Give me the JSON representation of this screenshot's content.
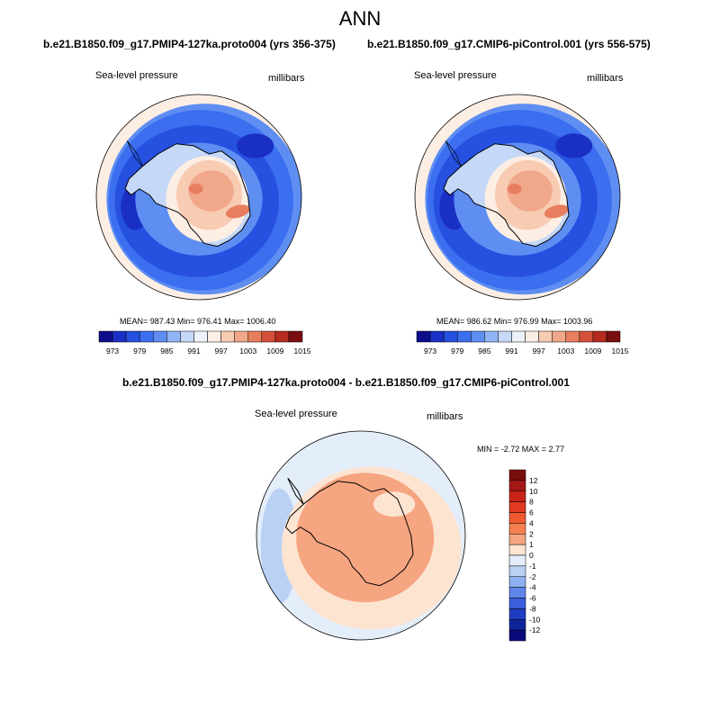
{
  "title": "ANN",
  "panels": [
    {
      "case": "b.e21.B1850.f09_g17.PMIP4-127ka.proto004 (yrs 356-375)",
      "variable": "Sea-level pressure",
      "units": "millibars",
      "stats": "MEAN= 987.43  Min= 976.41  Max= 1006.40",
      "cb_labels": [
        "973",
        "979",
        "985",
        "991",
        "997",
        "1003",
        "1009",
        "1015"
      ],
      "cb_colors": [
        "#0d0d8c",
        "#1a2fc4",
        "#2650e0",
        "#3c6ef0",
        "#5f8ef2",
        "#90b4f5",
        "#c5d8f7",
        "#eef2fa",
        "#fdeee4",
        "#f8cbb3",
        "#f1a88a",
        "#e77e5e",
        "#d4503a",
        "#b52b20",
        "#7a0d0d"
      ],
      "colors": {
        "ocean": "#3c6ef0",
        "inner_ring": "#5f8ef2",
        "trough": "#2650e0",
        "low": "#1a2fc4",
        "high_ring": "#fdeee4",
        "land": "#f8cbb3",
        "land_high": "#f1a88a",
        "peak": "#e77e5e",
        "ice": "#c5d8f7"
      }
    },
    {
      "case": "b.e21.B1850.f09_g17.CMIP6-piControl.001 (yrs 556-575)",
      "variable": "Sea-level pressure",
      "units": "millibars",
      "stats": "MEAN= 986.62  Min= 976.99  Max= 1003.96",
      "cb_labels": [
        "973",
        "979",
        "985",
        "991",
        "997",
        "1003",
        "1009",
        "1015"
      ],
      "cb_colors": [
        "#0d0d8c",
        "#1a2fc4",
        "#2650e0",
        "#3c6ef0",
        "#5f8ef2",
        "#90b4f5",
        "#c5d8f7",
        "#eef2fa",
        "#fdeee4",
        "#f8cbb3",
        "#f1a88a",
        "#e77e5e",
        "#d4503a",
        "#b52b20",
        "#7a0d0d"
      ],
      "colors": {
        "ocean": "#3c6ef0",
        "inner_ring": "#5f8ef2",
        "trough": "#2650e0",
        "low": "#1a2fc4",
        "high_ring": "#fdeee4",
        "land": "#f8cbb3",
        "land_high": "#f1a88a",
        "peak": "#e77e5e",
        "ice": "#c5d8f7"
      }
    }
  ],
  "difference": {
    "title": "b.e21.B1850.f09_g17.PMIP4-127ka.proto004 - b.e21.B1850.f09_g17.CMIP6-piControl.001",
    "variable": "Sea-level pressure",
    "units": "millibars",
    "minmax": "MIN =  -2.72 MAX =   2.77",
    "cb_labels": [
      "12",
      "10",
      "8",
      "6",
      "4",
      "2",
      "1",
      "0",
      "-1",
      "-2",
      "-4",
      "-6",
      "-8",
      "-10",
      "-12"
    ],
    "cb_colors": [
      "#7a0d0d",
      "#a51818",
      "#c82418",
      "#e03a20",
      "#f05a30",
      "#f57f4f",
      "#f6a581",
      "#fde4d0",
      "#e4eefa",
      "#b9d1f5",
      "#8fb0f0",
      "#5f86ea",
      "#3a5fdc",
      "#1f3dc0",
      "#10249a",
      "#0a0a7a"
    ],
    "colors": {
      "ocean": "#fde4d0",
      "neg_light": "#e4eefa",
      "neg": "#b9d1f5",
      "pos": "#f6a581",
      "pos_light": "#fde4d0"
    }
  }
}
